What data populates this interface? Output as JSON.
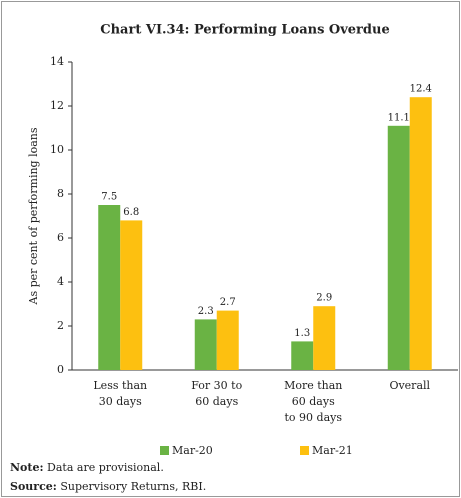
{
  "chart_data": {
    "type": "bar",
    "title": "Chart VI.34: Performing Loans Overdue",
    "ylabel": "As per cent of performing loans",
    "categories": [
      [
        "Less than",
        "30 days"
      ],
      [
        "For 30 to",
        "60 days"
      ],
      [
        "More than",
        "60 days",
        "to 90 days"
      ],
      [
        "Overall"
      ]
    ],
    "series": [
      {
        "name": "Mar-20",
        "color": "#6ab344",
        "values": [
          7.5,
          2.3,
          1.3,
          11.1
        ]
      },
      {
        "name": "Mar-21",
        "color": "#fdc010",
        "values": [
          6.8,
          2.7,
          2.9,
          12.4
        ]
      }
    ],
    "ylim": [
      0,
      14
    ],
    "yticks": [
      0,
      2,
      4,
      6,
      8,
      10,
      12,
      14
    ],
    "grid": false,
    "note": {
      "label": "Note:",
      "text": "Data are provisional."
    },
    "source": {
      "label": "Source:",
      "text": "Supervisory Returns, RBI."
    }
  }
}
